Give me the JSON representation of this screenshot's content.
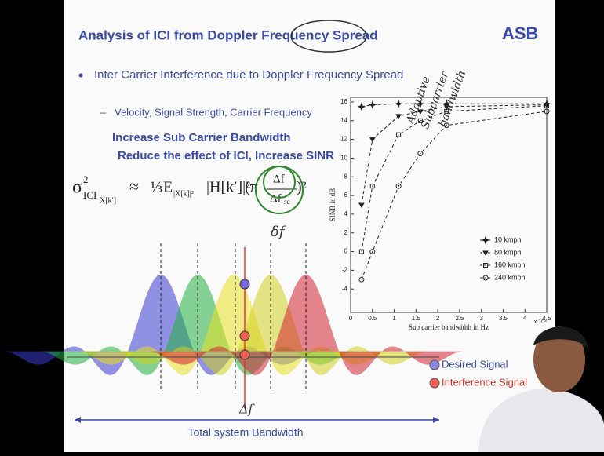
{
  "slide": {
    "title": "Analysis of ICI from Doppler Frequency Spread",
    "logo": "ASB",
    "bullet": "Inter Carrier Interference due to Doppler Frequency Spread",
    "sub_bullet": "Velocity, Signal Strength, Carrier Frequency",
    "highlight": [
      "Increase Sub Carrier Bandwidth",
      "Reduce the effect of ICI, Increase SINR"
    ],
    "formula": {
      "sigma": "σ",
      "sq": "2",
      "sub": "ICI",
      "subsub": "X[k′]",
      "approx": "≈",
      "third": "⅓",
      "E": "E",
      "E_sub": "|X[k]|²",
      "channel": "|H[k′]|²",
      "open": "(π",
      "num": "Δf",
      "den": "Δf",
      "den_sub": "sc",
      "close": ")²"
    },
    "legend": [
      "Desired Signal",
      "Interference Signal"
    ],
    "bandwidth_label": "Total system Bandwidth",
    "handwriting": {
      "note": [
        "Adaptive",
        "Subcarrier",
        "bandwidth"
      ],
      "delta1": "δf",
      "delta2": "Δf"
    }
  },
  "chart_data": {
    "type": "line",
    "xlabel": "Sub carrier bandwidth in Hz",
    "ylabel": "SINR in dB",
    "x_scale_label": "x 10⁴",
    "x": [
      0.25,
      0.5,
      1.1,
      1.6,
      2.2,
      4.5
    ],
    "series": [
      {
        "name": "10 kmph",
        "marker": "star",
        "color": "#222",
        "values": [
          15.5,
          15.7,
          15.8,
          15.8,
          15.8,
          15.8
        ]
      },
      {
        "name": "80 kmph",
        "marker": "triangle",
        "color": "#222",
        "values": [
          5,
          12,
          14.5,
          15,
          15.5,
          15.7
        ]
      },
      {
        "name": "160 kmph",
        "marker": "square",
        "color": "#222",
        "values": [
          0,
          7,
          12.5,
          14,
          15,
          15.6
        ]
      },
      {
        "name": "240 kmph",
        "marker": "circle",
        "color": "#222",
        "values": [
          -3,
          0,
          7,
          10.5,
          13.5,
          15
        ]
      }
    ],
    "xlim": [
      0,
      4.5
    ],
    "ylim": [
      -6.5,
      16.5
    ],
    "xticks": [
      0,
      0.5,
      1,
      1.5,
      2,
      2.5,
      3,
      3.5,
      4,
      4.5
    ],
    "yticks": [
      -4,
      -2,
      0,
      2,
      4,
      6,
      8,
      10,
      12,
      14,
      16
    ]
  }
}
